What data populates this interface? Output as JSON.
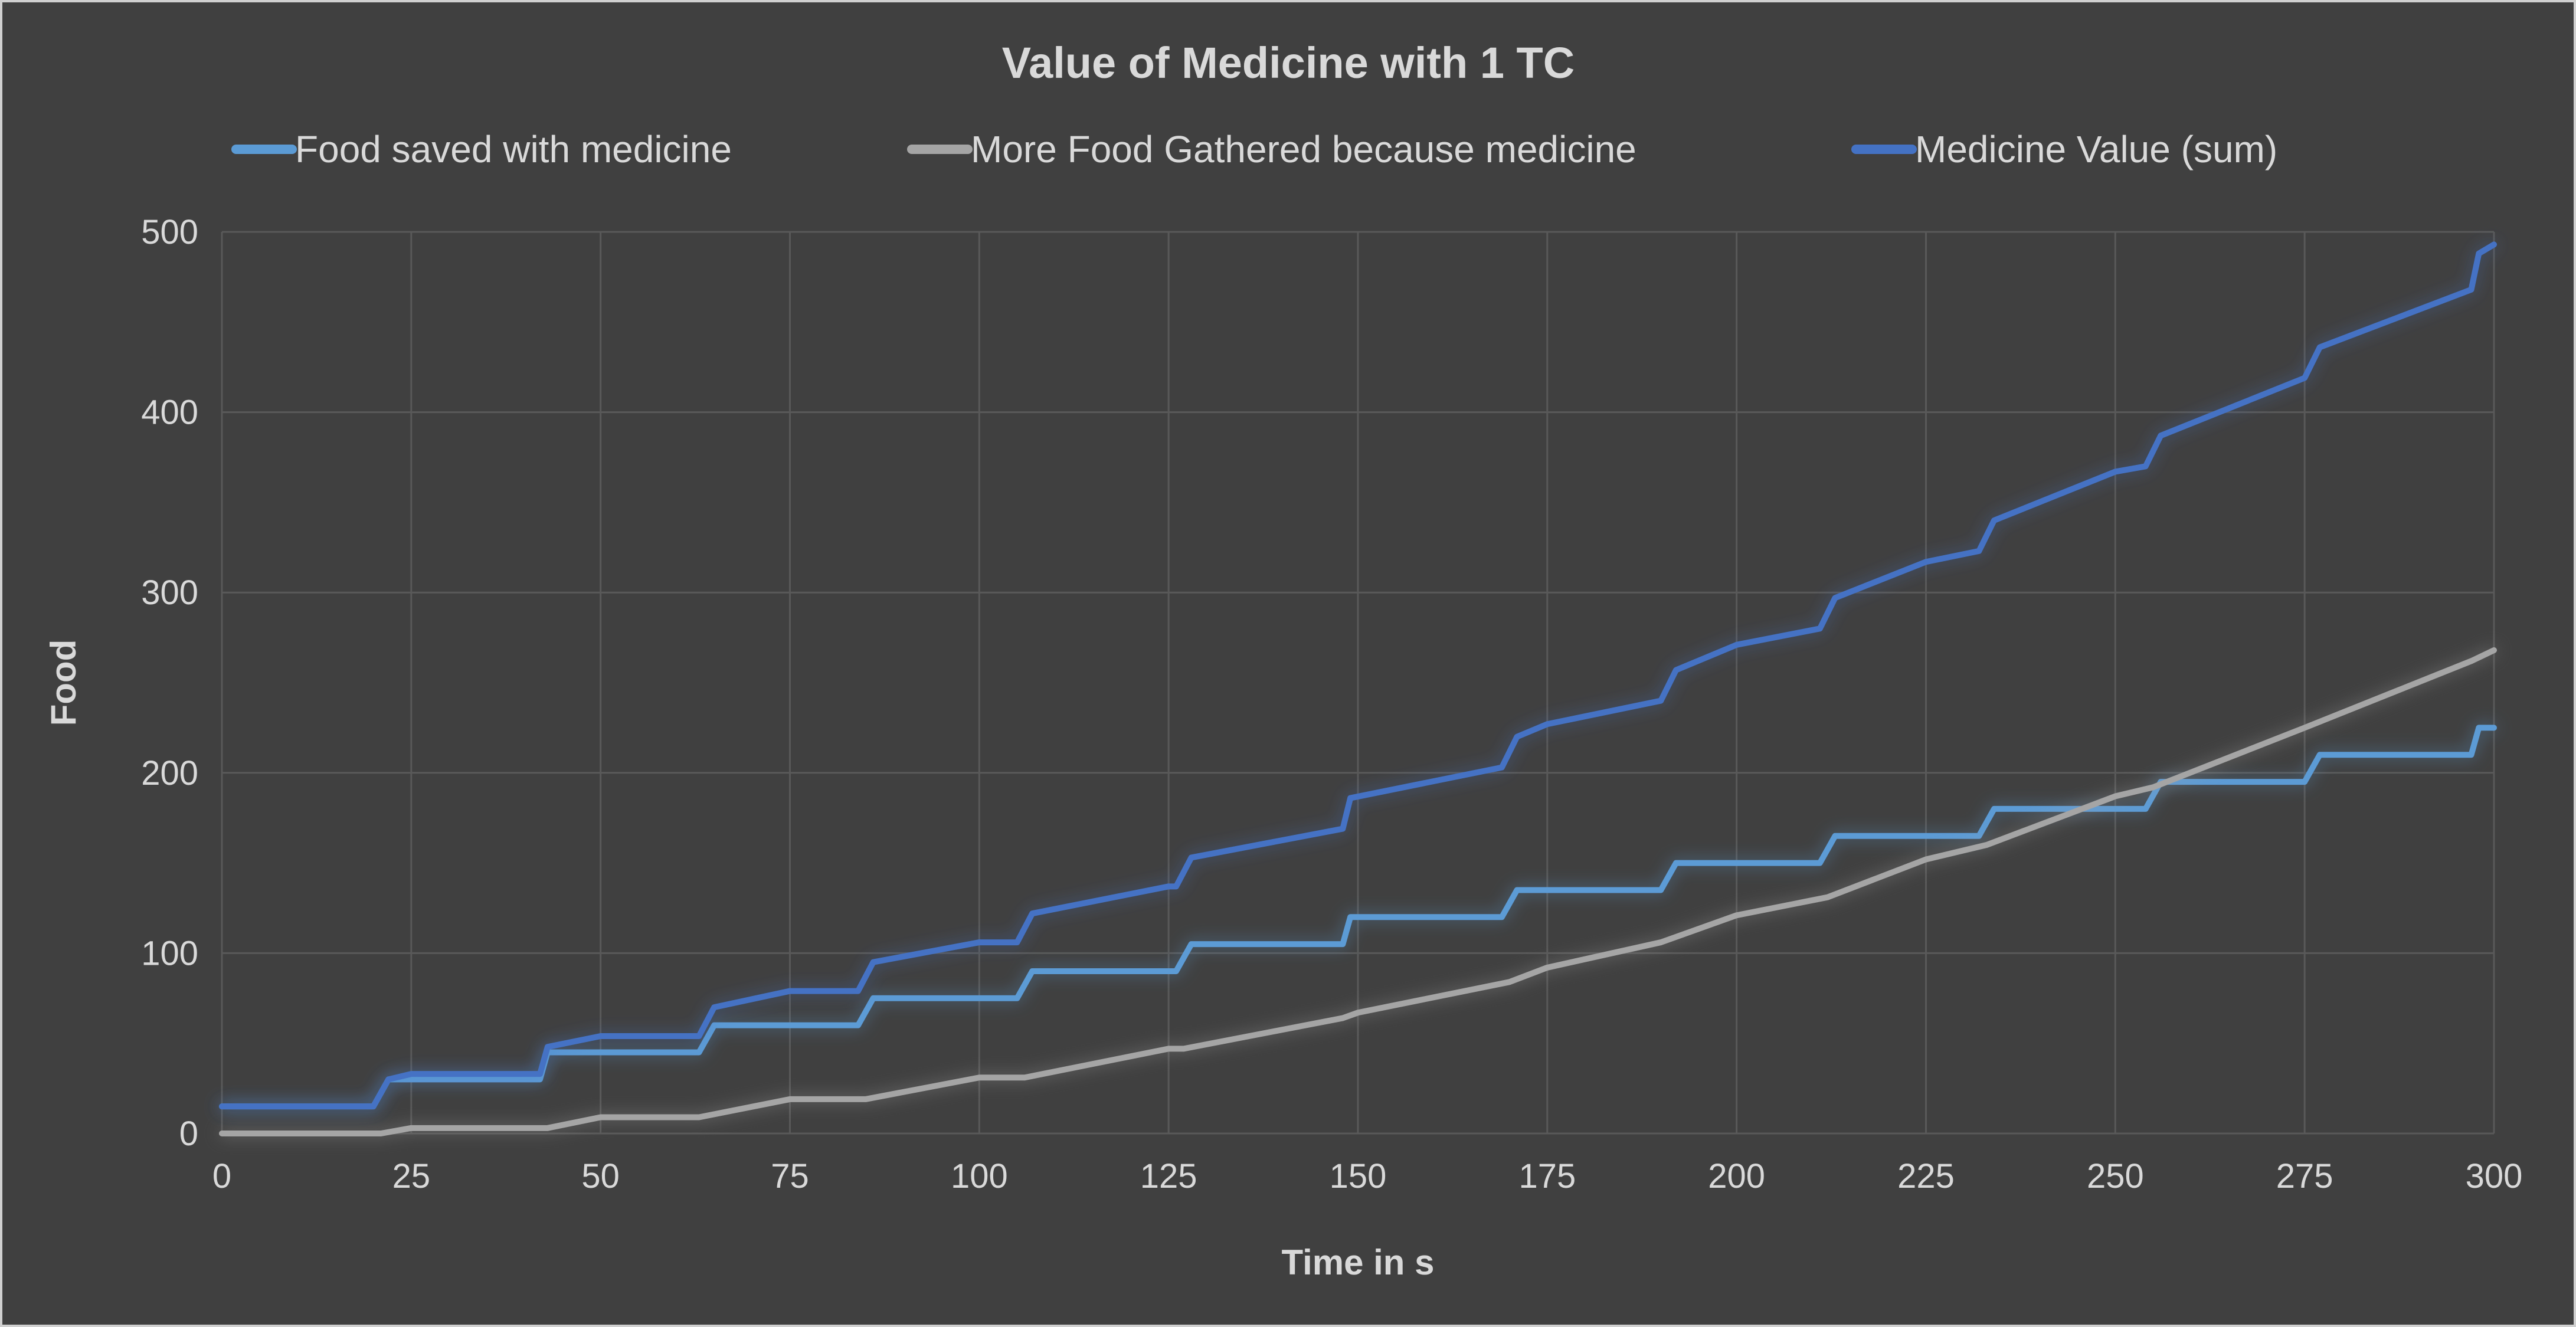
{
  "chart_data": {
    "type": "line",
    "title": "Value of Medicine with 1 TC",
    "xlabel": "Time in s",
    "ylabel": "Food",
    "xlim": [
      0,
      300
    ],
    "ylim": [
      0,
      500
    ],
    "xticks": [
      0,
      25,
      50,
      75,
      100,
      125,
      150,
      175,
      200,
      225,
      250,
      275,
      300
    ],
    "yticks": [
      0,
      100,
      200,
      300,
      400,
      500
    ],
    "grid": true,
    "legend_position": "top",
    "series": [
      {
        "name": "Food saved with medicine",
        "color": "#5b9bd5",
        "points": [
          [
            0,
            15
          ],
          [
            20,
            15
          ],
          [
            22,
            30
          ],
          [
            42,
            30
          ],
          [
            43,
            45
          ],
          [
            63,
            45
          ],
          [
            65,
            60
          ],
          [
            84,
            60
          ],
          [
            86,
            75
          ],
          [
            105,
            75
          ],
          [
            107,
            90
          ],
          [
            126,
            90
          ],
          [
            128,
            105
          ],
          [
            148,
            105
          ],
          [
            149,
            120
          ],
          [
            169,
            120
          ],
          [
            171,
            135
          ],
          [
            190,
            135
          ],
          [
            192,
            150
          ],
          [
            211,
            150
          ],
          [
            213,
            165
          ],
          [
            232,
            165
          ],
          [
            234,
            180
          ],
          [
            254,
            180
          ],
          [
            256,
            195
          ],
          [
            275,
            195
          ],
          [
            277,
            210
          ],
          [
            297,
            210
          ],
          [
            298,
            225
          ],
          [
            300,
            225
          ]
        ]
      },
      {
        "name": "More Food Gathered because medicine",
        "color": "#a5a5a5",
        "points": [
          [
            0,
            0
          ],
          [
            21,
            0
          ],
          [
            25,
            3
          ],
          [
            43,
            3
          ],
          [
            50,
            9
          ],
          [
            63,
            9
          ],
          [
            75,
            19
          ],
          [
            85,
            19
          ],
          [
            100,
            31
          ],
          [
            106,
            31
          ],
          [
            125,
            47
          ],
          [
            127,
            47
          ],
          [
            148,
            64
          ],
          [
            150,
            67
          ],
          [
            170,
            84
          ],
          [
            175,
            92
          ],
          [
            190,
            106
          ],
          [
            200,
            121
          ],
          [
            212,
            131
          ],
          [
            225,
            152
          ],
          [
            233,
            160
          ],
          [
            250,
            187
          ],
          [
            255,
            192
          ],
          [
            275,
            225
          ],
          [
            297,
            262
          ],
          [
            300,
            268
          ]
        ]
      },
      {
        "name": "Medicine Value (sum)",
        "color": "#4472c4",
        "points": [
          [
            0,
            15
          ],
          [
            20,
            15
          ],
          [
            22,
            30
          ],
          [
            25,
            33
          ],
          [
            42,
            33
          ],
          [
            43,
            48
          ],
          [
            50,
            54
          ],
          [
            63,
            54
          ],
          [
            65,
            70
          ],
          [
            75,
            79
          ],
          [
            84,
            79
          ],
          [
            86,
            95
          ],
          [
            100,
            106
          ],
          [
            105,
            106
          ],
          [
            107,
            122
          ],
          [
            125,
            137
          ],
          [
            126,
            137
          ],
          [
            128,
            153
          ],
          [
            148,
            169
          ],
          [
            149,
            186
          ],
          [
            169,
            203
          ],
          [
            171,
            220
          ],
          [
            175,
            227
          ],
          [
            190,
            240
          ],
          [
            192,
            257
          ],
          [
            200,
            271
          ],
          [
            211,
            280
          ],
          [
            213,
            297
          ],
          [
            225,
            317
          ],
          [
            232,
            323
          ],
          [
            234,
            340
          ],
          [
            250,
            367
          ],
          [
            254,
            370
          ],
          [
            256,
            387
          ],
          [
            275,
            419
          ],
          [
            277,
            436
          ],
          [
            297,
            468
          ],
          [
            298,
            488
          ],
          [
            300,
            493
          ]
        ]
      }
    ]
  }
}
